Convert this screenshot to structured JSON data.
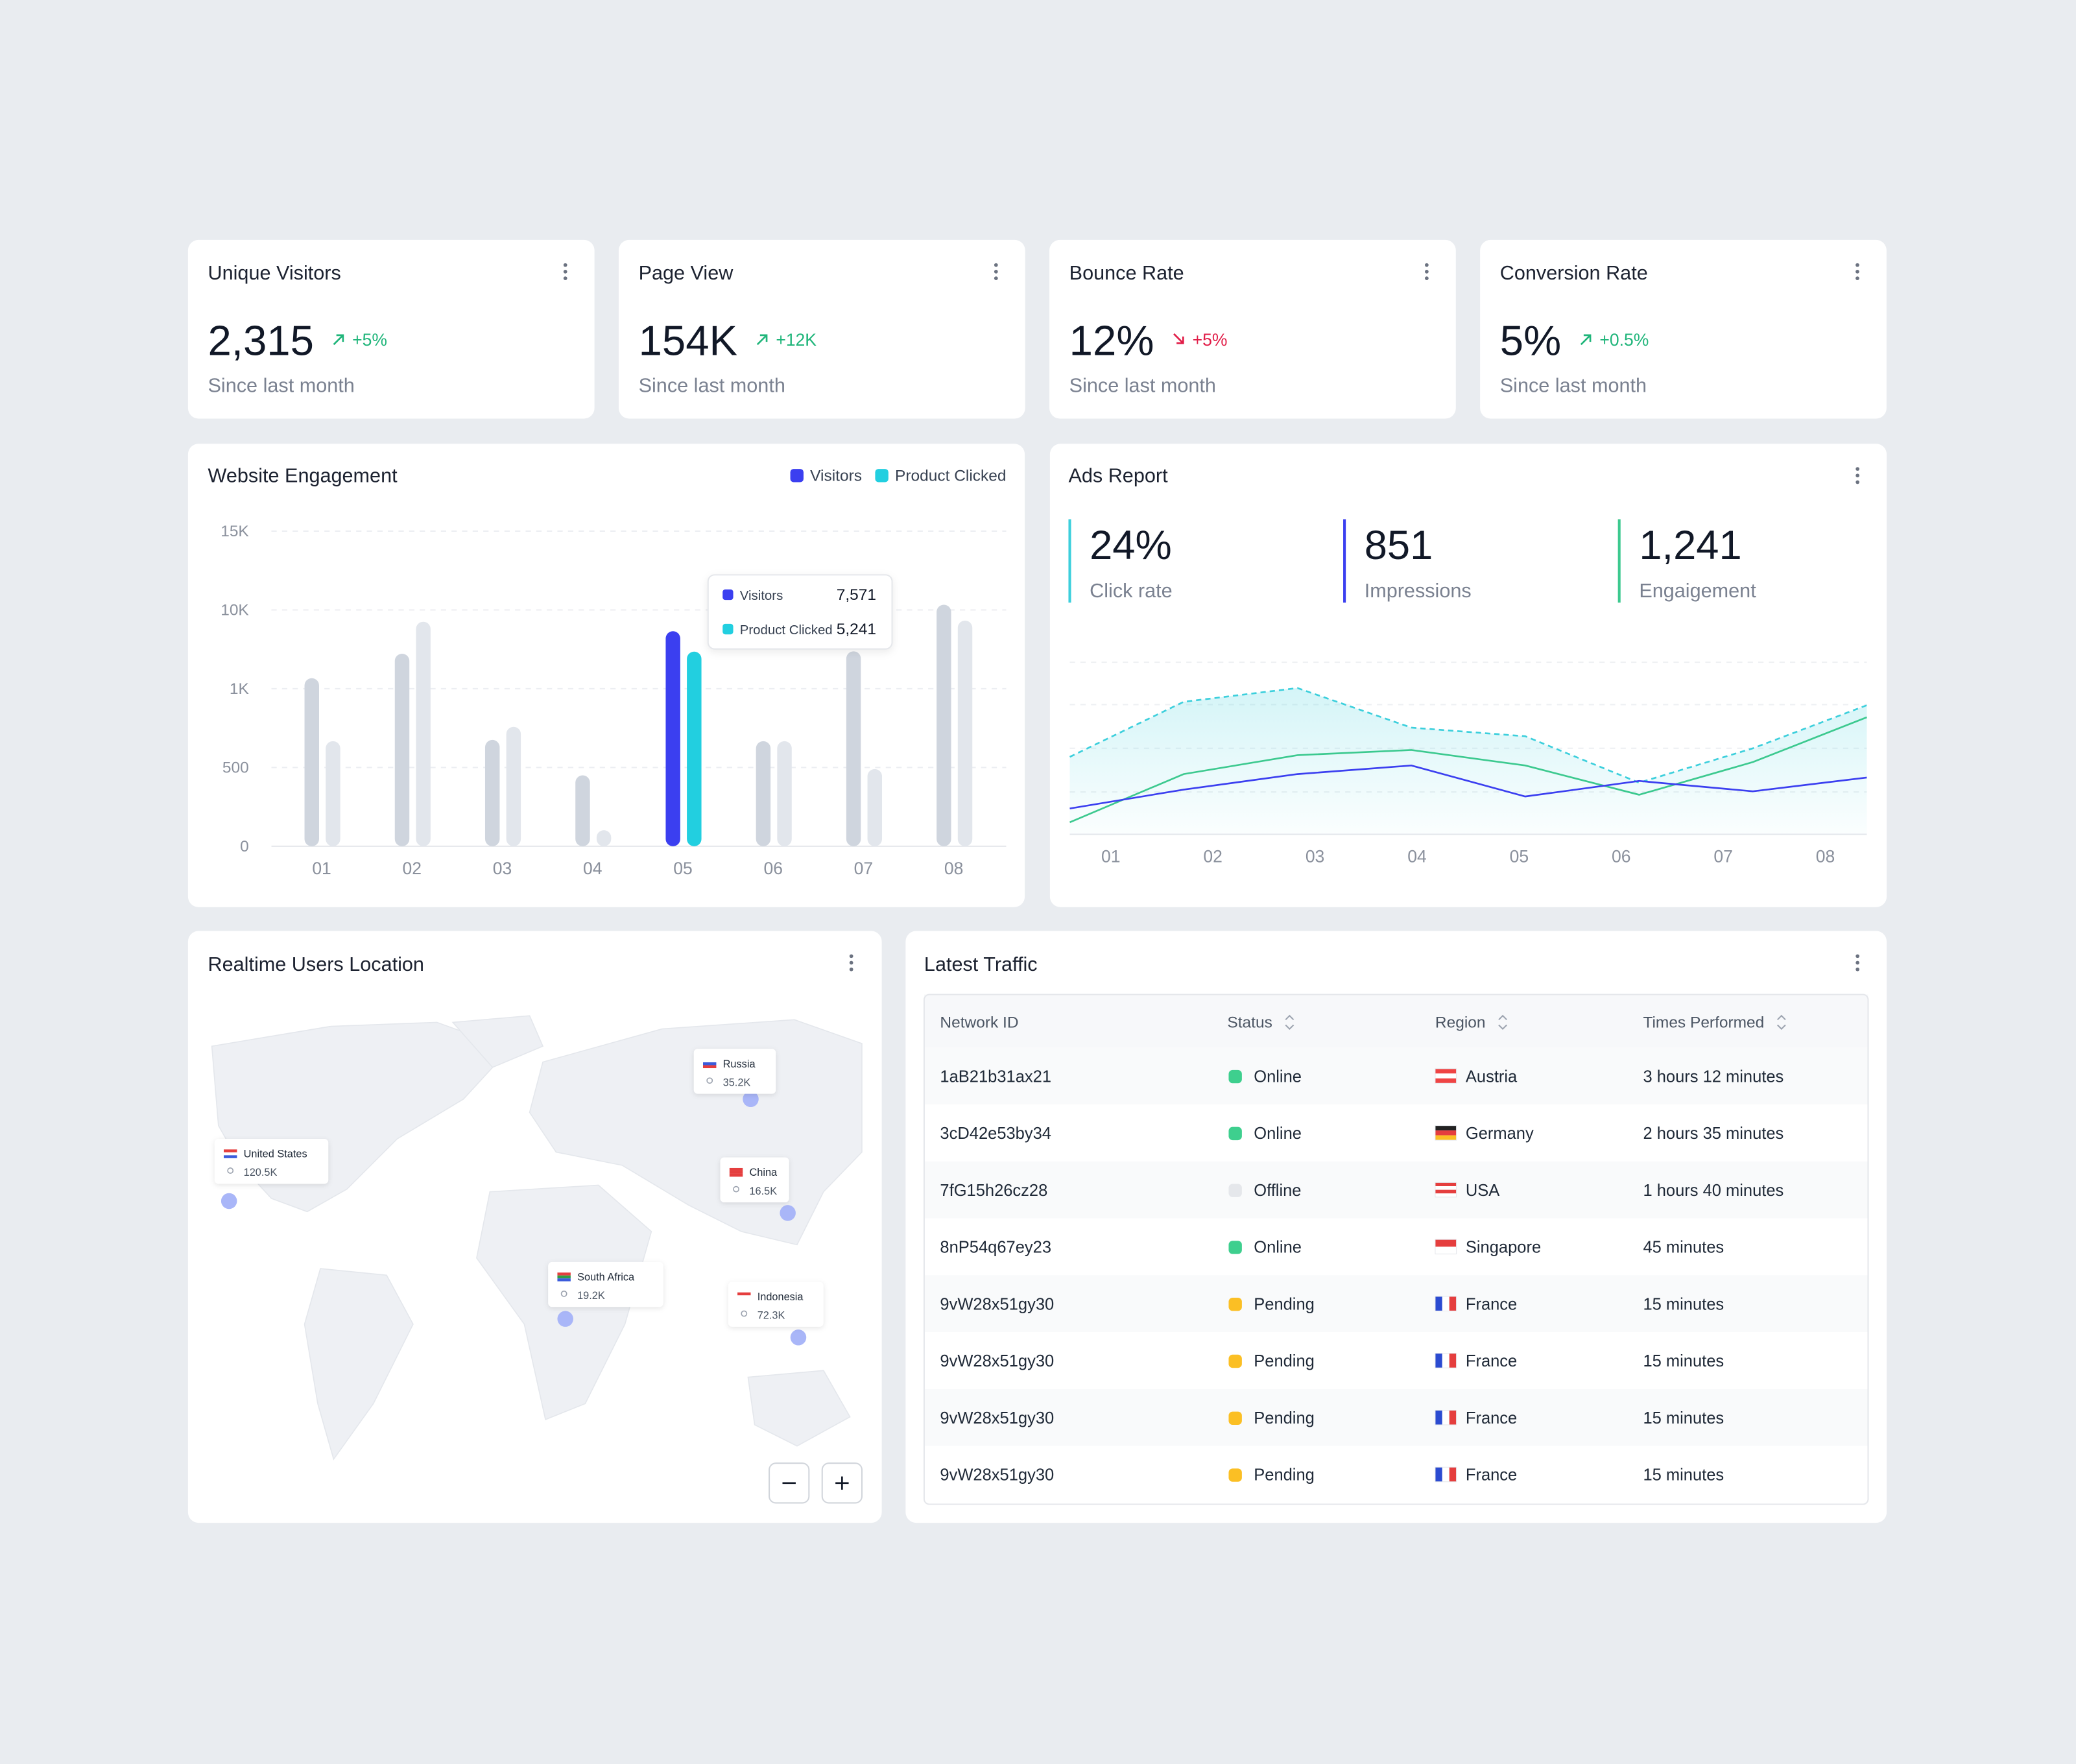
{
  "kpis": [
    {
      "title": "Unique Visitors",
      "value": "2,315",
      "change": "+5%",
      "trend": "up",
      "note": "Since last month"
    },
    {
      "title": "Page View",
      "value": "154K",
      "change": "+12K",
      "trend": "up",
      "note": "Since last month"
    },
    {
      "title": "Bounce Rate",
      "value": "12%",
      "change": "+5%",
      "trend": "down",
      "note": "Since last month"
    },
    {
      "title": "Conversion Rate",
      "value": "5%",
      "change": "+0.5%",
      "trend": "up",
      "note": "Since last month"
    }
  ],
  "engagement": {
    "type": "bar",
    "title": "Website Engagement",
    "categories": [
      "01",
      "02",
      "03",
      "04",
      "05",
      "06",
      "07",
      "08"
    ],
    "series": [
      {
        "name": "Visitors",
        "color": "#3b3ff0",
        "inactive_color": "#cfd5de",
        "values": [
          2200,
          5000,
          675,
          450,
          7571,
          667,
          5270,
          10330
        ],
        "value_labels": [
          null,
          null,
          null,
          null,
          "7,571",
          null,
          null,
          null
        ]
      },
      {
        "name": "Product Clicked",
        "color": "#22cfe0",
        "inactive_color": "#e2e6ec",
        "values": [
          667,
          8650,
          758,
          102,
          5241,
          667,
          490,
          8780
        ],
        "value_labels": [
          null,
          null,
          null,
          null,
          "5,241",
          null,
          null,
          null
        ]
      }
    ],
    "ylim": [
      0,
      15000
    ],
    "yticks": [
      0,
      500,
      {
        "value": 1000,
        "label": "1K"
      },
      {
        "value": 10000,
        "label": "10K"
      },
      {
        "value": 15000,
        "label": "15K"
      }
    ],
    "grid": true
  },
  "ads": {
    "title": "Ads Report",
    "stats": [
      {
        "value": "24%",
        "label": "Click rate",
        "color": "#3ccfdc"
      },
      {
        "value": "851",
        "label": "Impressions",
        "color": "#3b3ff0"
      },
      {
        "value": "1,241",
        "label": "Engaigement",
        "color": "#3cc98f"
      }
    ],
    "chart": {
      "type": "line",
      "categories": [
        "01",
        "02",
        "03",
        "04",
        "05",
        "06",
        "07",
        "08"
      ],
      "ylim": [
        0,
        100
      ],
      "series": [
        {
          "color": "#3ccfdc",
          "style": "dashed",
          "area": true,
          "values": [
            45,
            77,
            85,
            62,
            57,
            30,
            50,
            75
          ]
        },
        {
          "color": "#3cc98f",
          "style": "solid",
          "area": false,
          "values": [
            7,
            35,
            46,
            49,
            40,
            23,
            42,
            68
          ]
        },
        {
          "color": "#3b3ff0",
          "style": "solid",
          "area": false,
          "values": [
            15,
            26,
            35,
            40,
            22,
            31,
            25,
            33
          ]
        }
      ]
    }
  },
  "map": {
    "title": "Realtime Users Location",
    "locations": [
      {
        "name": "United States",
        "users": "120.5K",
        "flag": [
          "#e53e3e",
          "#ffffff",
          "#3b5bdb"
        ]
      },
      {
        "name": "Russia",
        "users": "35.2K",
        "flag": [
          "#ffffff",
          "#3b5bdb",
          "#e53e3e"
        ]
      },
      {
        "name": "China",
        "users": "16.5K",
        "flag": [
          "#e53e3e",
          "#e53e3e",
          "#e53e3e"
        ]
      },
      {
        "name": "South Africa",
        "users": "19.2K",
        "flag": [
          "#e53e3e",
          "#2f9e44",
          "#3b5bdb"
        ]
      },
      {
        "name": "Indonesia",
        "users": "72.3K",
        "flag": [
          "#e53e3e",
          "#ffffff",
          "#ffffff"
        ]
      }
    ]
  },
  "traffic": {
    "title": "Latest Traffic",
    "columns": [
      "Network ID",
      "Status",
      "Region",
      "Times Performed"
    ],
    "status_colors": {
      "Online": "#3ecf8e",
      "Offline": "#e5e7eb",
      "Pending": "#fbbf24"
    },
    "flags": {
      "Austria": {
        "dir": "h",
        "stripes": [
          "#ef4444",
          "#ffffff",
          "#ef4444"
        ]
      },
      "Germany": {
        "dir": "h",
        "stripes": [
          "#222222",
          "#e53e3e",
          "#fbbf24"
        ]
      },
      "USA": {
        "dir": "h",
        "stripes": [
          "#e53e3e",
          "#ffffff",
          "#e53e3e",
          "#ffffff"
        ]
      },
      "Singapore": {
        "dir": "h",
        "stripes": [
          "#e53e3e",
          "#ffffff"
        ]
      },
      "France": {
        "dir": "v",
        "stripes": [
          "#2b4bd1",
          "#ffffff",
          "#e53e3e"
        ]
      }
    },
    "rows": [
      [
        "1aB21b31ax21",
        "Online",
        "Austria",
        "3 hours 12 minutes"
      ],
      [
        "3cD42e53by34",
        "Online",
        "Germany",
        "2 hours 35 minutes"
      ],
      [
        "7fG15h26cz28",
        "Offline",
        "USA",
        "1 hours 40 minutes"
      ],
      [
        "8nP54q67ey23",
        "Online",
        "Singapore",
        "45 minutes"
      ],
      [
        "9vW28x51gy30",
        "Pending",
        "France",
        "15 minutes"
      ],
      [
        "9vW28x51gy30",
        "Pending",
        "France",
        "15 minutes"
      ],
      [
        "9vW28x51gy30",
        "Pending",
        "France",
        "15 minutes"
      ],
      [
        "9vW28x51gy30",
        "Pending",
        "France",
        "15 minutes"
      ]
    ]
  }
}
